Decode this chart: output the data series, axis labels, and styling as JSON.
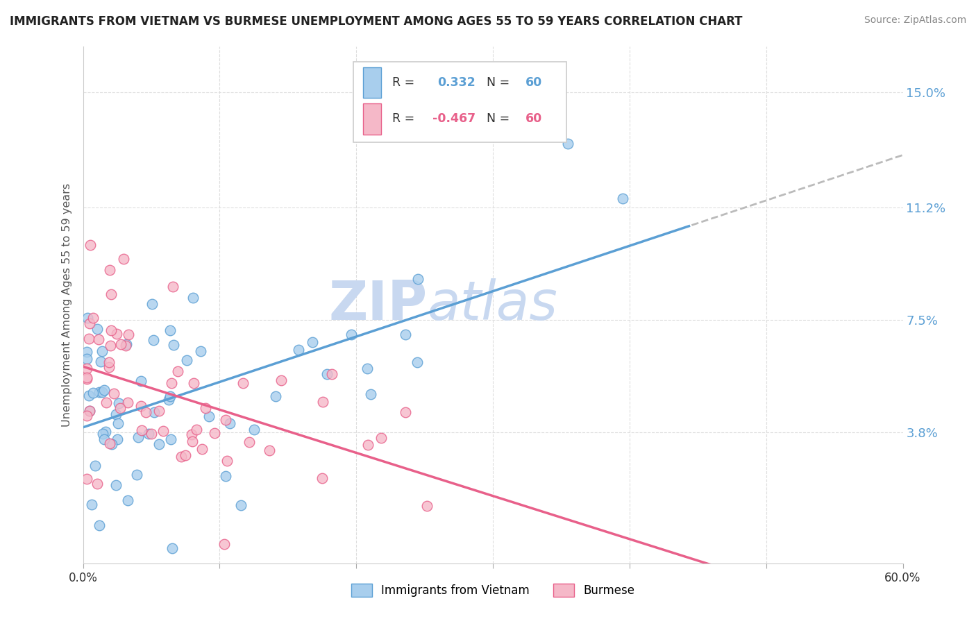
{
  "title": "IMMIGRANTS FROM VIETNAM VS BURMESE UNEMPLOYMENT AMONG AGES 55 TO 59 YEARS CORRELATION CHART",
  "source": "Source: ZipAtlas.com",
  "ylabel": "Unemployment Among Ages 55 to 59 years",
  "ytick_labels": [
    "15.0%",
    "11.2%",
    "7.5%",
    "3.8%"
  ],
  "ytick_values": [
    0.15,
    0.112,
    0.075,
    0.038
  ],
  "xlim": [
    0.0,
    0.6
  ],
  "ylim": [
    -0.005,
    0.165
  ],
  "r_vietnam": 0.332,
  "n_vietnam": 60,
  "r_burmese": -0.467,
  "n_burmese": 60,
  "color_vietnam": "#A8CEED",
  "color_burmese": "#F5B8C8",
  "color_line_vietnam": "#5B9FD4",
  "color_line_burmese": "#E8608A",
  "color_dashed_line": "#BBBBBB",
  "watermark_color": "#C8D8F0",
  "xtick_positions": [
    0.0,
    0.1,
    0.2,
    0.3,
    0.4,
    0.5,
    0.6
  ],
  "xtick_labels": [
    "0.0%",
    "",
    "",
    "",
    "",
    "",
    "60.0%"
  ]
}
